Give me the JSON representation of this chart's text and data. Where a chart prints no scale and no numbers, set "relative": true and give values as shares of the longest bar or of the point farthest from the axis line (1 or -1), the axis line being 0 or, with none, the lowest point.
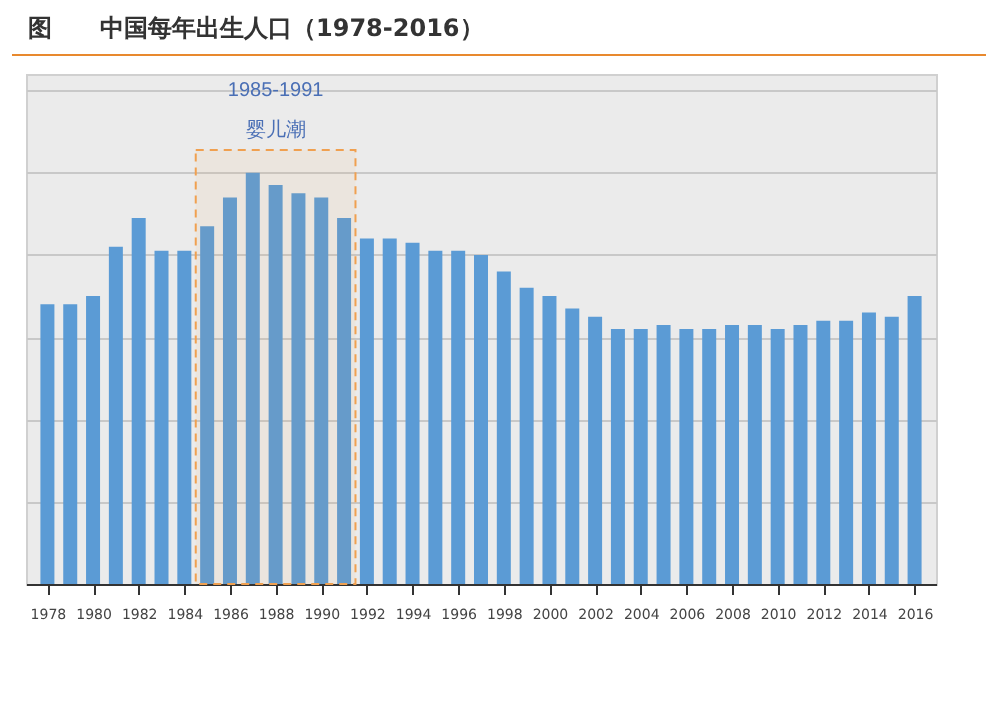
{
  "chart_data": {
    "type": "bar",
    "title": "图　　中国每年出生人口（1978-2016）",
    "x": [
      1978,
      1979,
      1980,
      1981,
      1982,
      1983,
      1984,
      1985,
      1986,
      1987,
      1988,
      1989,
      1990,
      1991,
      1992,
      1993,
      1994,
      1995,
      1996,
      1997,
      1998,
      1999,
      2000,
      2001,
      2002,
      2003,
      2004,
      2005,
      2006,
      2007,
      2008,
      2009,
      2010,
      2011,
      2012,
      2013,
      2014,
      2015,
      2016
    ],
    "values": [
      0.68,
      0.68,
      0.7,
      0.82,
      0.89,
      0.81,
      0.81,
      0.87,
      0.94,
      1,
      0.97,
      0.95,
      0.94,
      0.89,
      0.84,
      0.84,
      0.83,
      0.81,
      0.81,
      0.8,
      0.76,
      0.72,
      0.7,
      0.67,
      0.65,
      0.62,
      0.62,
      0.63,
      0.62,
      0.62,
      0.63,
      0.63,
      0.62,
      0.63,
      0.64,
      0.64,
      0.66,
      0.65,
      0.7
    ],
    "color": "#5b9bd5",
    "relative": true,
    "xlim": [
      1977.5,
      2016.5
    ],
    "xticks": [
      1978,
      1980,
      1982,
      1984,
      1986,
      1988,
      1990,
      1992,
      1994,
      1996,
      1998,
      2000,
      2002,
      2004,
      2006,
      2008,
      2010,
      2012,
      2014,
      2016
    ],
    "grid": "y",
    "bands": [
      {
        "axis": "x",
        "from": 1984.5,
        "to": 1991.5,
        "label": "婴儿潮",
        "color": "#f0a050"
      }
    ],
    "annotations": [
      "1985-1991"
    ]
  }
}
